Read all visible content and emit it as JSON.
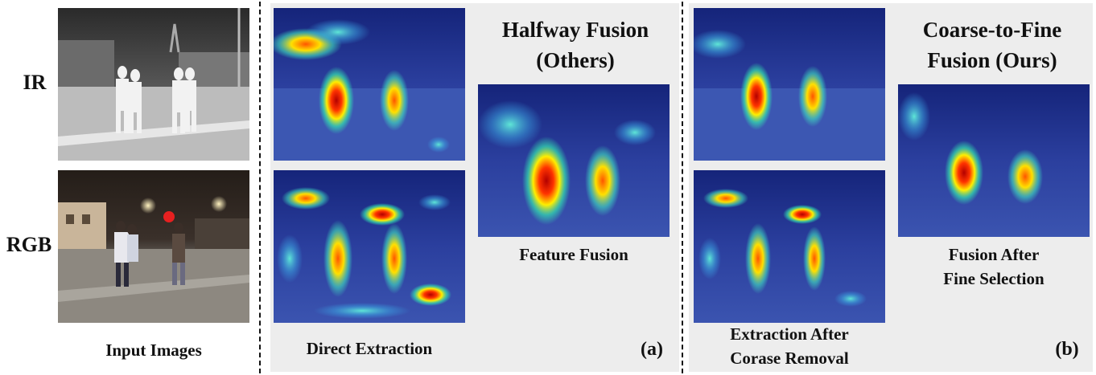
{
  "row_labels": {
    "ir": "IR",
    "rgb": "RGB"
  },
  "captions": {
    "input": "Input Images",
    "direct": "Direct Extraction",
    "halfway_title_1": "Halfway Fusion",
    "halfway_title_2": "(Others)",
    "feature_fusion": "Feature Fusion",
    "tag_a": "(a)",
    "extraction_1": "Extraction After",
    "extraction_2": "Corase Removal",
    "ctf_title_1": "Coarse-to-Fine",
    "ctf_title_2": "Fusion (Ours)",
    "fusion_fine_1": "Fusion After",
    "fusion_fine_2": "Fine Selection",
    "tag_b": "(b)"
  },
  "colors": {
    "panel": "#ededed",
    "heat_base": "#1c2f8c",
    "text": "#111111"
  }
}
